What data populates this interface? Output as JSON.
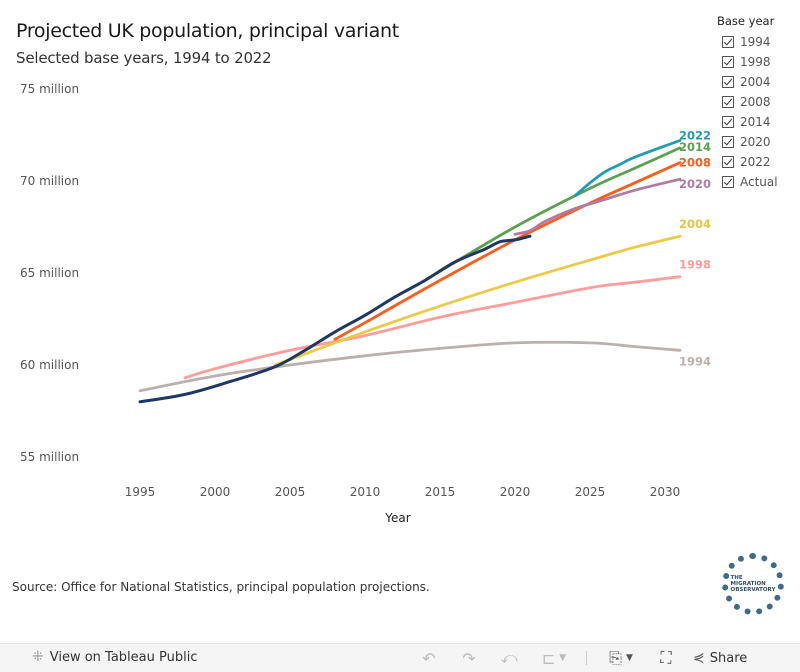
{
  "header": {
    "title": "Projected UK population, principal variant",
    "subtitle": "Selected base years, 1994 to 2022"
  },
  "legend": {
    "title": "Base year",
    "items": [
      {
        "label": "1994",
        "checked": true
      },
      {
        "label": "1998",
        "checked": true
      },
      {
        "label": "2004",
        "checked": true
      },
      {
        "label": "2008",
        "checked": true
      },
      {
        "label": "2014",
        "checked": true
      },
      {
        "label": "2020",
        "checked": true
      },
      {
        "label": "2022",
        "checked": true
      },
      {
        "label": "Actual",
        "checked": true
      }
    ]
  },
  "footer": {
    "source": "Source: Office for National Statistics, principal population projections.",
    "logo_text": "THE\nMIGRATION\nOBSERVATORY"
  },
  "toolbar": {
    "view_label": "View on Tableau Public",
    "share_label": "Share",
    "icons": {
      "tableau": "tableau-icon",
      "undo": "undo-icon",
      "redo": "redo-icon",
      "revert": "revert-icon",
      "refresh": "refresh-icon",
      "download": "download-icon",
      "fullscreen": "fullscreen-icon",
      "share": "share-icon"
    }
  },
  "chart_data": {
    "type": "line",
    "title": "Projected UK population, principal variant",
    "subtitle": "Selected base years, 1994 to 2022",
    "xlabel": "Year",
    "ylabel": "",
    "xlim": [
      1995,
      2031
    ],
    "ylim": [
      55,
      75
    ],
    "xticks": [
      1995,
      2000,
      2005,
      2010,
      2015,
      2020,
      2025,
      2030
    ],
    "yticks": [
      {
        "value": 55,
        "label": "55 million"
      },
      {
        "value": 60,
        "label": "60 million"
      },
      {
        "value": 65,
        "label": "65 million"
      },
      {
        "value": 70,
        "label": "70 million"
      },
      {
        "value": 75,
        "label": "75 million"
      }
    ],
    "grid": false,
    "legend_position": "top-right",
    "series": [
      {
        "name": "1994",
        "color": "#bab0ac",
        "label_color": "#bab0ac",
        "x": [
          1995,
          2000,
          2005,
          2010,
          2015,
          2020,
          2025,
          2028,
          2031
        ],
        "y": [
          58.6,
          59.4,
          60.0,
          60.5,
          60.9,
          61.2,
          61.2,
          61.0,
          60.8
        ]
      },
      {
        "name": "1998",
        "color": "#ff9d9a",
        "label_color": "#ff9d9a",
        "x": [
          1998,
          2000,
          2005,
          2010,
          2015,
          2020,
          2025,
          2028,
          2031
        ],
        "y": [
          59.3,
          59.8,
          60.8,
          61.6,
          62.6,
          63.4,
          64.2,
          64.5,
          64.8
        ]
      },
      {
        "name": "2004",
        "color": "#edc948",
        "label_color": "#e8c440",
        "x": [
          2004,
          2005,
          2010,
          2015,
          2020,
          2025,
          2028,
          2031
        ],
        "y": [
          60.0,
          60.3,
          61.8,
          63.2,
          64.5,
          65.7,
          66.4,
          67.0
        ]
      },
      {
        "name": "2008",
        "color": "#ff5b1a",
        "label_color": "#ff5b1a",
        "x": [
          2008,
          2010,
          2015,
          2020,
          2025,
          2028,
          2031
        ],
        "y": [
          61.4,
          62.3,
          64.6,
          66.8,
          68.8,
          69.9,
          71.0
        ]
      },
      {
        "name": "2014",
        "color": "#59a14f",
        "label_color": "#59a14f",
        "x": [
          2014,
          2015,
          2020,
          2025,
          2028,
          2031
        ],
        "y": [
          64.6,
          65.1,
          67.5,
          69.6,
          70.7,
          71.8
        ]
      },
      {
        "name": "2020",
        "color": "#b07aa1",
        "label_color": "#b07aa1",
        "x": [
          2020,
          2021,
          2022,
          2024,
          2026,
          2028,
          2031
        ],
        "y": [
          67.1,
          67.3,
          67.8,
          68.5,
          69.0,
          69.5,
          70.1
        ]
      },
      {
        "name": "2022",
        "color": "#1f9bb5",
        "label_color": "#1f9bb5",
        "x": [
          2024,
          2025,
          2026,
          2027,
          2028,
          2031
        ],
        "y": [
          69.2,
          69.9,
          70.5,
          70.9,
          71.3,
          72.2
        ]
      },
      {
        "name": "Actual",
        "color": "#1f3763",
        "label_color": "#1f3763",
        "x": [
          1995,
          1998,
          2001,
          2004,
          2006,
          2008,
          2010,
          2012,
          2014,
          2016,
          2018,
          2019,
          2020,
          2021
        ],
        "y": [
          58.0,
          58.4,
          59.1,
          59.9,
          60.8,
          61.8,
          62.7,
          63.7,
          64.6,
          65.6,
          66.3,
          66.7,
          66.8,
          67.0
        ]
      }
    ],
    "end_labels": [
      {
        "series": "2022",
        "text": "2022"
      },
      {
        "series": "2014",
        "text": "2014"
      },
      {
        "series": "2008",
        "text": "2008"
      },
      {
        "series": "2020",
        "text": "2020"
      },
      {
        "series": "2004",
        "text": "2004"
      },
      {
        "series": "1998",
        "text": "1998"
      },
      {
        "series": "1994",
        "text": "1994"
      }
    ]
  }
}
